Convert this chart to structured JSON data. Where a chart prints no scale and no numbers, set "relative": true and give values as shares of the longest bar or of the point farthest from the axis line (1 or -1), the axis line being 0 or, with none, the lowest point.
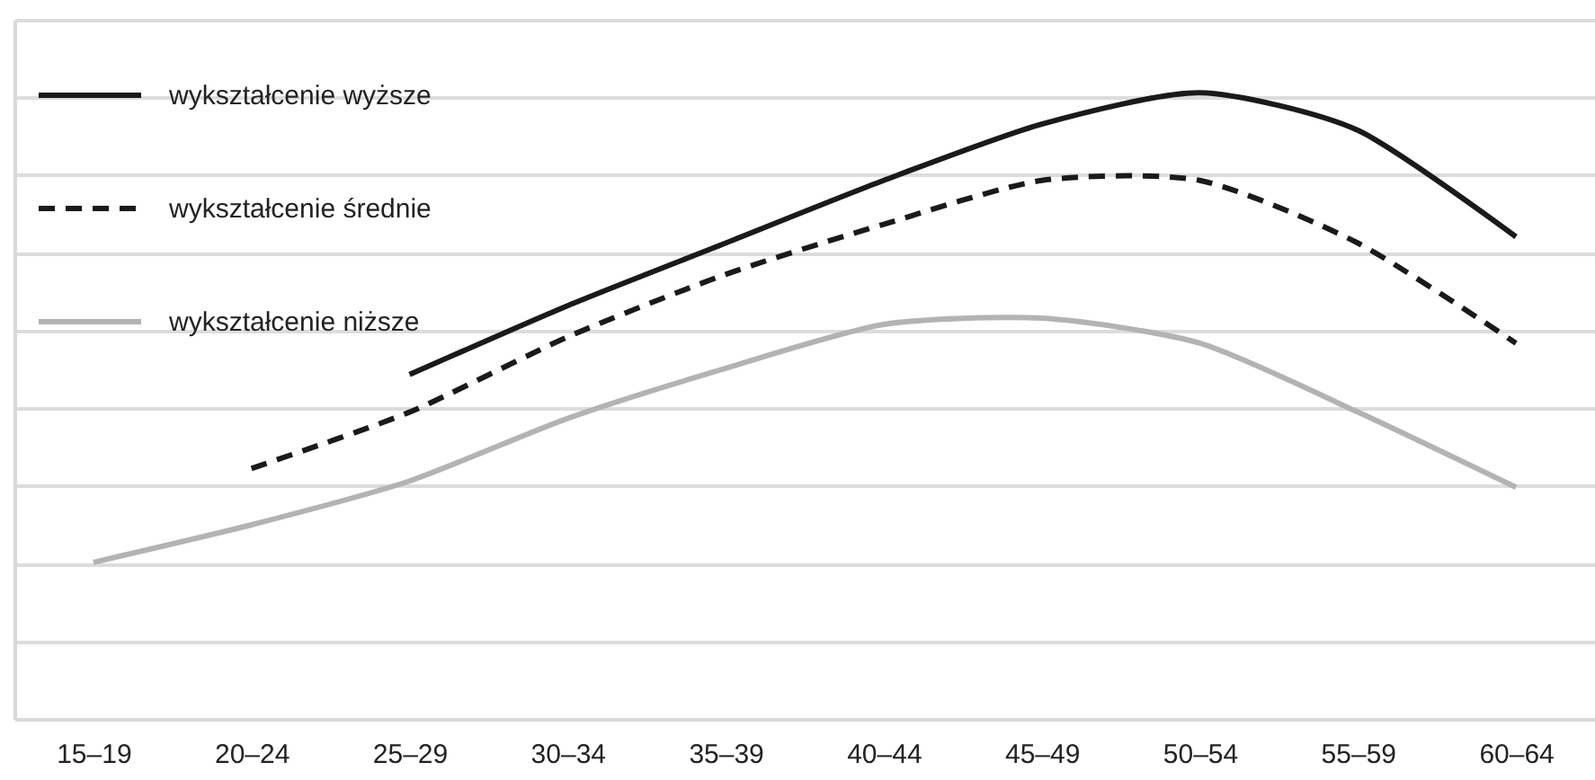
{
  "chart_data": {
    "type": "line",
    "relative": true,
    "categories": [
      "15–19",
      "20–24",
      "25–29",
      "30–34",
      "35–39",
      "40–44",
      "45–49",
      "50–54",
      "55–59",
      "60–64"
    ],
    "series": [
      {
        "name": "wykształcenie wyższe",
        "color": "#1a1a1a",
        "line_style": "solid",
        "values": [
          null,
          null,
          0.55,
          0.66,
          0.76,
          0.86,
          0.95,
          1,
          0.94,
          0.77
        ]
      },
      {
        "name": "wykształcenie średnie",
        "color": "#1a1a1a",
        "line_style": "dashed",
        "values": [
          null,
          0.4,
          0.49,
          0.61,
          0.71,
          0.79,
          0.86,
          0.86,
          0.76,
          0.6
        ]
      },
      {
        "name": "wykształcenie niższe",
        "color": "#b3b3b6",
        "line_style": "solid",
        "values": [
          0.25,
          0.31,
          0.38,
          0.48,
          0.56,
          0.63,
          0.64,
          0.6,
          0.49,
          0.37
        ]
      }
    ],
    "grid": "y",
    "legend": "top left"
  }
}
